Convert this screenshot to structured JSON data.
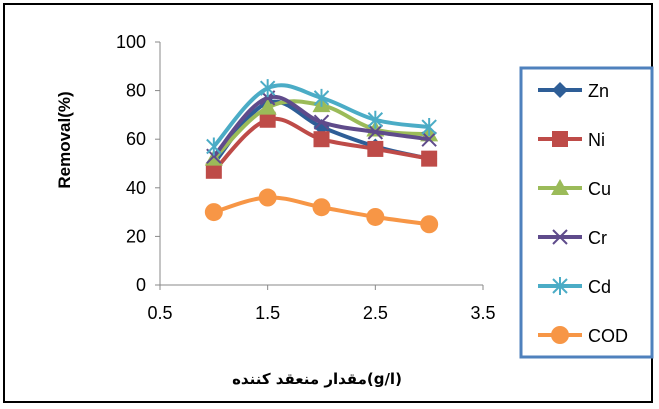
{
  "chart_data": {
    "type": "line",
    "title": "",
    "xlabel": "مقدار منعقد کننده(g/l)",
    "ylabel": "Removal(%)",
    "xlim": [
      0.5,
      3.5
    ],
    "ylim": [
      0,
      100
    ],
    "x_ticks": [
      "0.5",
      "1.5",
      "2.5",
      "3.5"
    ],
    "y_ticks": [
      "0",
      "20",
      "40",
      "60",
      "80",
      "100"
    ],
    "grid": false,
    "legend_position": "right",
    "x": [
      1,
      1.5,
      2,
      2.5,
      3
    ],
    "series": [
      {
        "name": "Zn",
        "values": [
          50,
          75,
          65,
          57,
          52
        ],
        "color": "#2E5E97",
        "marker": "diamond"
      },
      {
        "name": "Ni",
        "values": [
          47,
          68,
          60,
          56,
          52
        ],
        "color": "#BE4B48",
        "marker": "square"
      },
      {
        "name": "Cu",
        "values": [
          52,
          73,
          74,
          64,
          62
        ],
        "color": "#9BBB59",
        "marker": "triangle"
      },
      {
        "name": "Cr",
        "values": [
          53,
          77,
          67,
          63,
          60
        ],
        "color": "#5F4B8B",
        "marker": "x"
      },
      {
        "name": "Cd",
        "values": [
          57,
          81,
          77,
          68,
          65
        ],
        "color": "#4BACC6",
        "marker": "star"
      },
      {
        "name": "COD",
        "values": [
          30,
          36,
          32,
          28,
          25
        ],
        "color": "#F79646",
        "marker": "circle"
      }
    ]
  }
}
